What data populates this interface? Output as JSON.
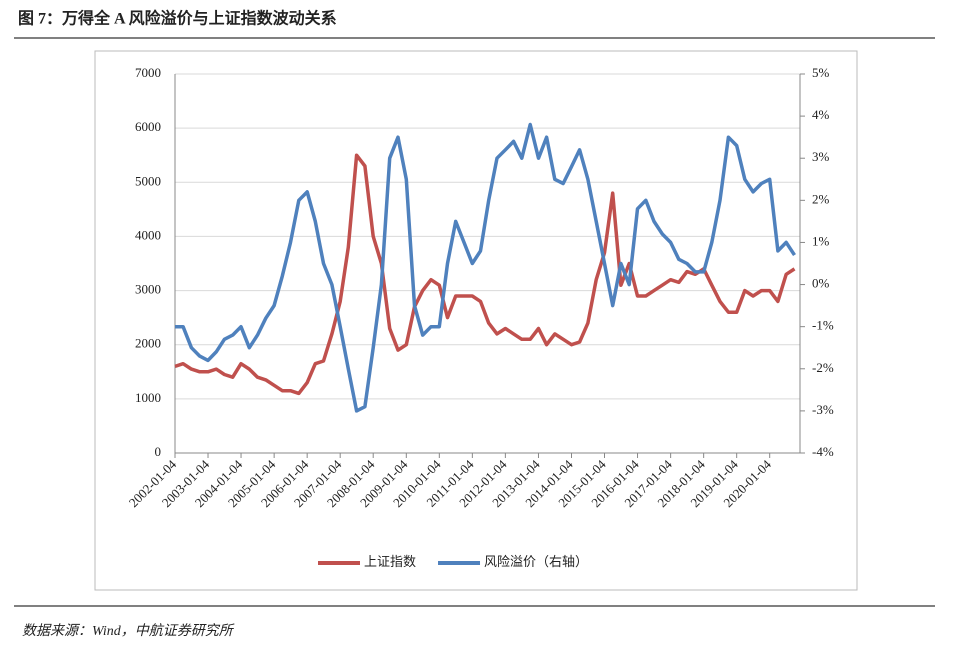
{
  "chart_data": {
    "type": "line",
    "title": "图 7：万得全 A 风险溢价与上证指数波动关系",
    "source": "数据来源：Wind，中航证券研究所",
    "x": [
      "2002-01-04",
      "2002-04-04",
      "2002-07-04",
      "2002-10-04",
      "2003-01-04",
      "2003-04-04",
      "2003-07-04",
      "2003-10-04",
      "2004-01-04",
      "2004-04-04",
      "2004-07-04",
      "2004-10-04",
      "2005-01-04",
      "2005-04-04",
      "2005-07-04",
      "2005-10-04",
      "2006-01-04",
      "2006-04-04",
      "2006-07-04",
      "2006-10-04",
      "2007-01-04",
      "2007-04-04",
      "2007-07-04",
      "2007-10-04",
      "2008-01-04",
      "2008-04-04",
      "2008-07-04",
      "2008-10-04",
      "2009-01-04",
      "2009-04-04",
      "2009-07-04",
      "2009-10-04",
      "2010-01-04",
      "2010-04-04",
      "2010-07-04",
      "2010-10-04",
      "2011-01-04",
      "2011-04-04",
      "2011-07-04",
      "2011-10-04",
      "2012-01-04",
      "2012-04-04",
      "2012-07-04",
      "2012-10-04",
      "2013-01-04",
      "2013-04-04",
      "2013-07-04",
      "2013-10-04",
      "2014-01-04",
      "2014-04-04",
      "2014-07-04",
      "2014-10-04",
      "2015-01-04",
      "2015-04-04",
      "2015-07-04",
      "2015-10-04",
      "2016-01-04",
      "2016-04-04",
      "2016-07-04",
      "2016-10-04",
      "2017-01-04",
      "2017-04-04",
      "2017-07-04",
      "2017-10-04",
      "2018-01-04",
      "2018-04-04",
      "2018-07-04",
      "2018-10-04",
      "2019-01-04",
      "2019-04-04",
      "2019-07-04",
      "2019-10-04",
      "2020-01-04",
      "2020-04-04",
      "2020-07-04",
      "2020-10-04"
    ],
    "series": [
      {
        "name": "上证指数",
        "color": "#c0504d",
        "values": [
          1600,
          1650,
          1550,
          1500,
          1500,
          1550,
          1450,
          1400,
          1650,
          1550,
          1400,
          1350,
          1250,
          1150,
          1150,
          1100,
          1300,
          1650,
          1700,
          2200,
          2800,
          3800,
          5500,
          5300,
          4000,
          3500,
          2300,
          1900,
          2000,
          2700,
          3000,
          3200,
          3100,
          2500,
          2900,
          2900,
          2900,
          2800,
          2400,
          2200,
          2300,
          2200,
          2100,
          2100,
          2300,
          2000,
          2200,
          2100,
          2000,
          2050,
          2400,
          3200,
          3700,
          4800,
          3100,
          3500,
          2900,
          2900,
          3000,
          3100,
          3200,
          3150,
          3350,
          3300,
          3400,
          3100,
          2800,
          2600,
          2600,
          3000,
          2900,
          3000,
          3000,
          2800,
          3300,
          3400
        ]
      },
      {
        "name": "风险溢价（右轴）",
        "color": "#4f81bd",
        "axis": "y2",
        "values": [
          -1.0,
          -1.0,
          -1.5,
          -1.7,
          -1.8,
          -1.6,
          -1.3,
          -1.2,
          -1.0,
          -1.5,
          -1.2,
          -0.8,
          -0.5,
          0.2,
          1.0,
          2.0,
          2.2,
          1.5,
          0.5,
          0.0,
          -1.0,
          -2.0,
          -3.0,
          -2.9,
          -1.5,
          0.0,
          3.0,
          3.5,
          2.5,
          -0.5,
          -1.2,
          -1.0,
          -1.0,
          0.5,
          1.5,
          1.0,
          0.5,
          0.8,
          2.0,
          3.0,
          3.2,
          3.4,
          3.0,
          3.8,
          3.0,
          3.5,
          2.5,
          2.4,
          2.8,
          3.2,
          2.5,
          1.5,
          0.5,
          -0.5,
          0.5,
          0.0,
          1.8,
          2.0,
          1.5,
          1.2,
          1.0,
          0.6,
          0.5,
          0.3,
          0.3,
          1.0,
          2.0,
          3.5,
          3.3,
          2.5,
          2.2,
          2.4,
          2.5,
          0.8,
          1.0,
          0.7
        ]
      }
    ],
    "xlim": [
      "2002-01-04",
      "2020-12-04"
    ],
    "xticks": [
      "2002-01-04",
      "2003-01-04",
      "2004-01-04",
      "2005-01-04",
      "2006-01-04",
      "2007-01-04",
      "2008-01-04",
      "2009-01-04",
      "2010-01-04",
      "2011-01-04",
      "2012-01-04",
      "2013-01-04",
      "2014-01-04",
      "2015-01-04",
      "2016-01-04",
      "2017-01-04",
      "2018-01-04",
      "2019-01-04",
      "2020-01-04"
    ],
    "ylim": [
      0,
      7000
    ],
    "yticks": [
      0,
      1000,
      2000,
      3000,
      4000,
      5000,
      6000,
      7000
    ],
    "y2lim": [
      -4,
      5
    ],
    "y2ticks": [
      {
        "value": -4,
        "label": "-4%"
      },
      {
        "value": -3,
        "label": "-3%"
      },
      {
        "value": -2,
        "label": "-2%"
      },
      {
        "value": -1,
        "label": "-1%"
      },
      {
        "value": 0,
        "label": "0%"
      },
      {
        "value": 1,
        "label": "1%"
      },
      {
        "value": 2,
        "label": "2%"
      },
      {
        "value": 3,
        "label": "3%"
      },
      {
        "value": 4,
        "label": "4%"
      },
      {
        "value": 5,
        "label": "5%"
      }
    ],
    "grid": true,
    "legend": "bottom"
  }
}
